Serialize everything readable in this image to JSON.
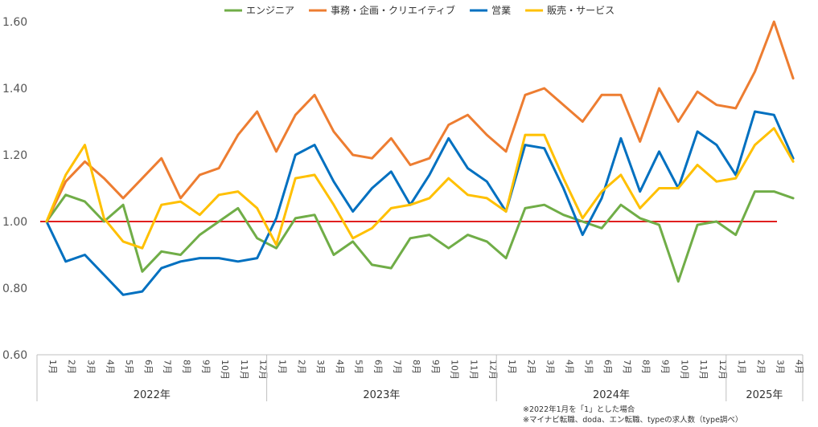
{
  "chart_data": {
    "type": "line",
    "ylim": [
      0.6,
      1.6
    ],
    "yticks": [
      "0.60",
      "0.80",
      "1.00",
      "1.20",
      "1.40",
      "1.60"
    ],
    "months": [
      "1月",
      "2月",
      "3月",
      "4月",
      "5月",
      "6月",
      "7月",
      "8月",
      "9月",
      "10月",
      "11月",
      "12月",
      "1月",
      "2月",
      "3月",
      "4月",
      "5月",
      "6月",
      "7月",
      "8月",
      "9月",
      "10月",
      "11月",
      "12月",
      "1月",
      "2月",
      "3月",
      "4月",
      "5月",
      "6月",
      "7月",
      "8月",
      "9月",
      "10月",
      "11月",
      "12月",
      "1月",
      "2月",
      "3月",
      "4月"
    ],
    "years": [
      {
        "label": "2022年",
        "start": 0,
        "count": 12
      },
      {
        "label": "2023年",
        "start": 12,
        "count": 12
      },
      {
        "label": "2024年",
        "start": 24,
        "count": 12
      },
      {
        "label": "2025年",
        "start": 36,
        "count": 4
      }
    ],
    "reference_line": {
      "value": 1.0,
      "color": "#e02020"
    },
    "series": [
      {
        "name": "エンジニア",
        "color": "#70ad47",
        "values": [
          1.0,
          1.08,
          1.06,
          1.0,
          1.05,
          0.85,
          0.91,
          0.9,
          0.96,
          1.0,
          1.04,
          0.95,
          0.92,
          1.01,
          1.02,
          0.9,
          0.94,
          0.87,
          0.86,
          0.95,
          0.96,
          0.92,
          0.96,
          0.94,
          0.89,
          1.04,
          1.05,
          1.02,
          1.0,
          0.98,
          1.05,
          1.01,
          0.99,
          0.82,
          0.99,
          1.0,
          0.96,
          1.09,
          1.09,
          1.07
        ]
      },
      {
        "name": "事務・企画・クリエイティブ",
        "color": "#ed7d31",
        "values": [
          1.0,
          1.12,
          1.18,
          1.13,
          1.07,
          1.13,
          1.19,
          1.07,
          1.14,
          1.16,
          1.26,
          1.33,
          1.21,
          1.32,
          1.38,
          1.27,
          1.2,
          1.19,
          1.25,
          1.17,
          1.19,
          1.29,
          1.32,
          1.26,
          1.21,
          1.38,
          1.4,
          1.35,
          1.3,
          1.38,
          1.38,
          1.24,
          1.4,
          1.3,
          1.39,
          1.35,
          1.34,
          1.45,
          1.6,
          1.43
        ]
      },
      {
        "name": "営業",
        "color": "#0070c0",
        "values": [
          1.0,
          0.88,
          0.9,
          0.84,
          0.78,
          0.79,
          0.86,
          0.88,
          0.89,
          0.89,
          0.88,
          0.89,
          1.01,
          1.2,
          1.23,
          1.12,
          1.03,
          1.1,
          1.15,
          1.05,
          1.14,
          1.25,
          1.16,
          1.12,
          1.03,
          1.23,
          1.22,
          1.1,
          0.96,
          1.07,
          1.25,
          1.09,
          1.21,
          1.1,
          1.27,
          1.23,
          1.14,
          1.33,
          1.32,
          1.19
        ]
      },
      {
        "name": "販売・サービス",
        "color": "#ffc000",
        "values": [
          1.0,
          1.14,
          1.23,
          1.01,
          0.94,
          0.92,
          1.05,
          1.06,
          1.02,
          1.08,
          1.09,
          1.04,
          0.93,
          1.13,
          1.14,
          1.05,
          0.95,
          0.98,
          1.04,
          1.05,
          1.07,
          1.13,
          1.08,
          1.07,
          1.03,
          1.26,
          1.26,
          1.13,
          1.01,
          1.09,
          1.14,
          1.04,
          1.1,
          1.1,
          1.17,
          1.12,
          1.13,
          1.23,
          1.28,
          1.18
        ]
      }
    ]
  },
  "notes": [
    "※2022年1月を「1」とした場合",
    "※マイナビ転職、doda、エン転職、typeの求人数（type調べ）"
  ]
}
